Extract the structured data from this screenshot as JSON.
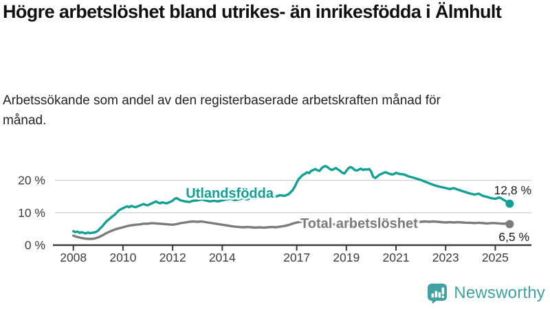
{
  "header": {
    "title": "Högre arbetslöshet bland utrikes- än inrikesfödda i Älmhult",
    "subtitle": "Arbetssökande som andel av den registerbaserade arbetskraften månad för månad."
  },
  "chart_data": {
    "type": "line",
    "title": "Högre arbetslöshet bland utrikes- än inrikesfödda i Älmhult",
    "xlabel": "",
    "ylabel": "",
    "x_unit": "year (monthly data)",
    "y_unit": "%",
    "xlim": [
      2007.2,
      2026.4
    ],
    "ylim": [
      0,
      26
    ],
    "grid": "horizontal",
    "legend": "inline-labels",
    "x_axis": {
      "tick_years": [
        2008,
        2010,
        2012,
        2014,
        2017,
        2019,
        2021,
        2023,
        2025
      ],
      "tick_labels": [
        "2008",
        "2010",
        "2012",
        "2014",
        "2017",
        "2019",
        "2021",
        "2023",
        "2025"
      ]
    },
    "y_axis": {
      "tick_values": [
        0,
        10,
        20
      ],
      "tick_labels": [
        "0 %",
        "10 %",
        "20 %"
      ]
    },
    "series": [
      {
        "name": "Utlandsfödda",
        "color": "#11a094",
        "end_value": 12.8,
        "end_label": "12,8 %",
        "points": [
          [
            2008.0,
            4.3
          ],
          [
            2008.08,
            4.0
          ],
          [
            2008.17,
            4.2
          ],
          [
            2008.25,
            3.8
          ],
          [
            2008.33,
            4.0
          ],
          [
            2008.5,
            3.6
          ],
          [
            2008.58,
            3.9
          ],
          [
            2008.67,
            3.7
          ],
          [
            2008.83,
            3.9
          ],
          [
            2008.92,
            4.1
          ],
          [
            2009.0,
            4.5
          ],
          [
            2009.08,
            5.2
          ],
          [
            2009.17,
            5.8
          ],
          [
            2009.25,
            6.6
          ],
          [
            2009.33,
            7.3
          ],
          [
            2009.5,
            8.4
          ],
          [
            2009.58,
            8.9
          ],
          [
            2009.67,
            9.4
          ],
          [
            2009.83,
            10.7
          ],
          [
            2009.92,
            11.1
          ],
          [
            2010.0,
            11.4
          ],
          [
            2010.08,
            11.7
          ],
          [
            2010.17,
            12.0
          ],
          [
            2010.25,
            11.7
          ],
          [
            2010.33,
            12.1
          ],
          [
            2010.5,
            11.7
          ],
          [
            2010.67,
            12.2
          ],
          [
            2010.83,
            12.7
          ],
          [
            2010.92,
            12.4
          ],
          [
            2011.0,
            12.3
          ],
          [
            2011.17,
            12.9
          ],
          [
            2011.25,
            13.2
          ],
          [
            2011.33,
            13.5
          ],
          [
            2011.42,
            13.1
          ],
          [
            2011.5,
            12.9
          ],
          [
            2011.58,
            13.2
          ],
          [
            2011.75,
            12.9
          ],
          [
            2011.92,
            13.4
          ],
          [
            2012.0,
            13.7
          ],
          [
            2012.08,
            14.3
          ],
          [
            2012.17,
            14.5
          ],
          [
            2012.25,
            14.1
          ],
          [
            2012.33,
            13.8
          ],
          [
            2012.5,
            13.5
          ],
          [
            2012.67,
            13.3
          ],
          [
            2012.83,
            13.7
          ],
          [
            2013.0,
            13.8
          ],
          [
            2013.17,
            14.1
          ],
          [
            2013.33,
            13.8
          ],
          [
            2013.5,
            13.5
          ],
          [
            2013.67,
            13.7
          ],
          [
            2013.83,
            13.5
          ],
          [
            2014.0,
            13.8
          ],
          [
            2014.17,
            14.1
          ],
          [
            2014.33,
            14.3
          ],
          [
            2014.5,
            13.9
          ],
          [
            2014.67,
            14.1
          ],
          [
            2014.83,
            14.4
          ],
          [
            2015.0,
            14.1
          ],
          [
            2015.17,
            14.6
          ],
          [
            2015.33,
            14.3
          ],
          [
            2015.5,
            14.7
          ],
          [
            2015.67,
            14.5
          ],
          [
            2015.83,
            14.9
          ],
          [
            2016.0,
            15.3
          ],
          [
            2016.17,
            15.0
          ],
          [
            2016.33,
            15.4
          ],
          [
            2016.5,
            15.2
          ],
          [
            2016.67,
            15.7
          ],
          [
            2016.83,
            16.9
          ],
          [
            2016.92,
            18.0
          ],
          [
            2017.0,
            19.3
          ],
          [
            2017.08,
            20.4
          ],
          [
            2017.17,
            21.1
          ],
          [
            2017.25,
            21.7
          ],
          [
            2017.33,
            22.0
          ],
          [
            2017.42,
            22.5
          ],
          [
            2017.5,
            22.2
          ],
          [
            2017.58,
            22.9
          ],
          [
            2017.67,
            23.2
          ],
          [
            2017.75,
            23.5
          ],
          [
            2017.83,
            23.1
          ],
          [
            2017.92,
            22.9
          ],
          [
            2018.0,
            23.7
          ],
          [
            2018.08,
            24.2
          ],
          [
            2018.17,
            24.4
          ],
          [
            2018.25,
            24.0
          ],
          [
            2018.33,
            23.5
          ],
          [
            2018.42,
            23.2
          ],
          [
            2018.5,
            23.5
          ],
          [
            2018.58,
            23.8
          ],
          [
            2018.67,
            23.3
          ],
          [
            2018.75,
            22.9
          ],
          [
            2018.83,
            22.4
          ],
          [
            2018.92,
            22.1
          ],
          [
            2019.0,
            22.9
          ],
          [
            2019.08,
            23.7
          ],
          [
            2019.17,
            24.1
          ],
          [
            2019.25,
            23.8
          ],
          [
            2019.33,
            23.2
          ],
          [
            2019.42,
            23.0
          ],
          [
            2019.5,
            23.3
          ],
          [
            2019.58,
            23.6
          ],
          [
            2019.67,
            23.2
          ],
          [
            2019.75,
            23.4
          ],
          [
            2019.83,
            23.3
          ],
          [
            2019.92,
            23.5
          ],
          [
            2020.0,
            22.7
          ],
          [
            2020.08,
            21.1
          ],
          [
            2020.17,
            20.7
          ],
          [
            2020.25,
            21.2
          ],
          [
            2020.33,
            21.7
          ],
          [
            2020.42,
            22.0
          ],
          [
            2020.5,
            22.3
          ],
          [
            2020.58,
            22.5
          ],
          [
            2020.67,
            22.2
          ],
          [
            2020.75,
            22.0
          ],
          [
            2020.83,
            21.8
          ],
          [
            2020.92,
            21.9
          ],
          [
            2021.0,
            22.3
          ],
          [
            2021.08,
            22.1
          ],
          [
            2021.17,
            21.9
          ],
          [
            2021.33,
            21.8
          ],
          [
            2021.42,
            21.5
          ],
          [
            2021.5,
            21.2
          ],
          [
            2021.67,
            20.9
          ],
          [
            2021.83,
            20.5
          ],
          [
            2021.92,
            20.3
          ],
          [
            2022.0,
            20.1
          ],
          [
            2022.17,
            19.6
          ],
          [
            2022.33,
            19.1
          ],
          [
            2022.5,
            18.6
          ],
          [
            2022.67,
            18.2
          ],
          [
            2022.83,
            17.9
          ],
          [
            2023.0,
            17.6
          ],
          [
            2023.17,
            17.3
          ],
          [
            2023.33,
            17.6
          ],
          [
            2023.5,
            17.1
          ],
          [
            2023.67,
            16.7
          ],
          [
            2023.83,
            16.3
          ],
          [
            2024.0,
            15.9
          ],
          [
            2024.17,
            15.6
          ],
          [
            2024.33,
            15.9
          ],
          [
            2024.5,
            15.2
          ],
          [
            2024.67,
            14.9
          ],
          [
            2024.83,
            14.5
          ],
          [
            2025.0,
            14.3
          ],
          [
            2025.08,
            14.5
          ],
          [
            2025.17,
            14.7
          ],
          [
            2025.25,
            14.4
          ],
          [
            2025.33,
            14.0
          ],
          [
            2025.42,
            13.6
          ],
          [
            2025.5,
            13.2
          ],
          [
            2025.58,
            12.8
          ]
        ]
      },
      {
        "name": "Total arbetslöshet",
        "color": "#7b7b7b",
        "end_value": 6.5,
        "end_label": "6,5 %",
        "points": [
          [
            2008.0,
            2.9
          ],
          [
            2008.17,
            2.5
          ],
          [
            2008.33,
            2.2
          ],
          [
            2008.5,
            2.0
          ],
          [
            2008.67,
            1.9
          ],
          [
            2008.83,
            2.0
          ],
          [
            2009.0,
            2.4
          ],
          [
            2009.17,
            3.0
          ],
          [
            2009.33,
            3.7
          ],
          [
            2009.5,
            4.3
          ],
          [
            2009.67,
            4.8
          ],
          [
            2009.83,
            5.2
          ],
          [
            2010.0,
            5.5
          ],
          [
            2010.17,
            5.9
          ],
          [
            2010.33,
            6.1
          ],
          [
            2010.5,
            6.3
          ],
          [
            2010.67,
            6.4
          ],
          [
            2010.83,
            6.6
          ],
          [
            2011.0,
            6.6
          ],
          [
            2011.17,
            6.8
          ],
          [
            2011.33,
            6.7
          ],
          [
            2011.5,
            6.6
          ],
          [
            2011.67,
            6.5
          ],
          [
            2011.83,
            6.4
          ],
          [
            2012.0,
            6.3
          ],
          [
            2012.17,
            6.5
          ],
          [
            2012.33,
            6.8
          ],
          [
            2012.5,
            7.0
          ],
          [
            2012.67,
            7.2
          ],
          [
            2012.83,
            7.3
          ],
          [
            2013.0,
            7.2
          ],
          [
            2013.17,
            7.3
          ],
          [
            2013.33,
            7.1
          ],
          [
            2013.5,
            6.9
          ],
          [
            2013.67,
            6.7
          ],
          [
            2013.83,
            6.5
          ],
          [
            2014.0,
            6.3
          ],
          [
            2014.17,
            6.1
          ],
          [
            2014.33,
            5.9
          ],
          [
            2014.5,
            5.7
          ],
          [
            2014.67,
            5.6
          ],
          [
            2014.83,
            5.5
          ],
          [
            2015.0,
            5.6
          ],
          [
            2015.17,
            5.5
          ],
          [
            2015.33,
            5.4
          ],
          [
            2015.5,
            5.5
          ],
          [
            2015.67,
            5.4
          ],
          [
            2015.83,
            5.5
          ],
          [
            2016.0,
            5.6
          ],
          [
            2016.17,
            5.5
          ],
          [
            2016.33,
            5.7
          ],
          [
            2016.5,
            5.9
          ],
          [
            2016.67,
            6.2
          ],
          [
            2016.83,
            6.6
          ],
          [
            2017.0,
            7.0
          ],
          [
            2017.17,
            7.2
          ],
          [
            2017.33,
            7.1
          ],
          [
            2017.5,
            7.0
          ],
          [
            2017.67,
            6.8
          ],
          [
            2017.83,
            6.7
          ],
          [
            2018.0,
            6.6
          ],
          [
            2018.25,
            6.5
          ],
          [
            2018.5,
            6.4
          ],
          [
            2018.75,
            6.3
          ],
          [
            2019.0,
            6.3
          ],
          [
            2019.25,
            6.2
          ],
          [
            2019.5,
            6.2
          ],
          [
            2019.75,
            6.3
          ],
          [
            2020.0,
            6.5
          ],
          [
            2020.17,
            7.1
          ],
          [
            2020.33,
            7.4
          ],
          [
            2020.5,
            7.5
          ],
          [
            2020.67,
            7.6
          ],
          [
            2020.83,
            7.5
          ],
          [
            2021.0,
            7.4
          ],
          [
            2021.25,
            7.3
          ],
          [
            2021.5,
            7.2
          ],
          [
            2021.75,
            7.1
          ],
          [
            2022.0,
            7.2
          ],
          [
            2022.17,
            7.3
          ],
          [
            2022.33,
            7.2
          ],
          [
            2022.5,
            7.3
          ],
          [
            2022.67,
            7.2
          ],
          [
            2022.83,
            7.1
          ],
          [
            2023.0,
            7.0
          ],
          [
            2023.17,
            7.1
          ],
          [
            2023.33,
            7.0
          ],
          [
            2023.5,
            7.1
          ],
          [
            2023.67,
            7.0
          ],
          [
            2023.83,
            6.9
          ],
          [
            2024.0,
            6.9
          ],
          [
            2024.17,
            6.8
          ],
          [
            2024.33,
            6.9
          ],
          [
            2024.5,
            6.8
          ],
          [
            2024.67,
            6.7
          ],
          [
            2024.83,
            6.8
          ],
          [
            2025.0,
            6.8
          ],
          [
            2025.17,
            6.7
          ],
          [
            2025.33,
            6.6
          ],
          [
            2025.42,
            6.7
          ],
          [
            2025.5,
            6.6
          ],
          [
            2025.58,
            6.5
          ]
        ]
      }
    ],
    "colors": {
      "series_utlandsfodda": "#11a094",
      "series_total": "#7b7b7b",
      "gridline": "#d2d2d2",
      "axis": "#3a3a3a",
      "axis_text": "#3c3c3c",
      "annotation_text": "#1a1a1a"
    }
  },
  "footer": {
    "brand_label": "Newsworthy",
    "brand_color": "#3fa1a1",
    "logo_icon": "bar-chart-speech-bubble-icon"
  }
}
